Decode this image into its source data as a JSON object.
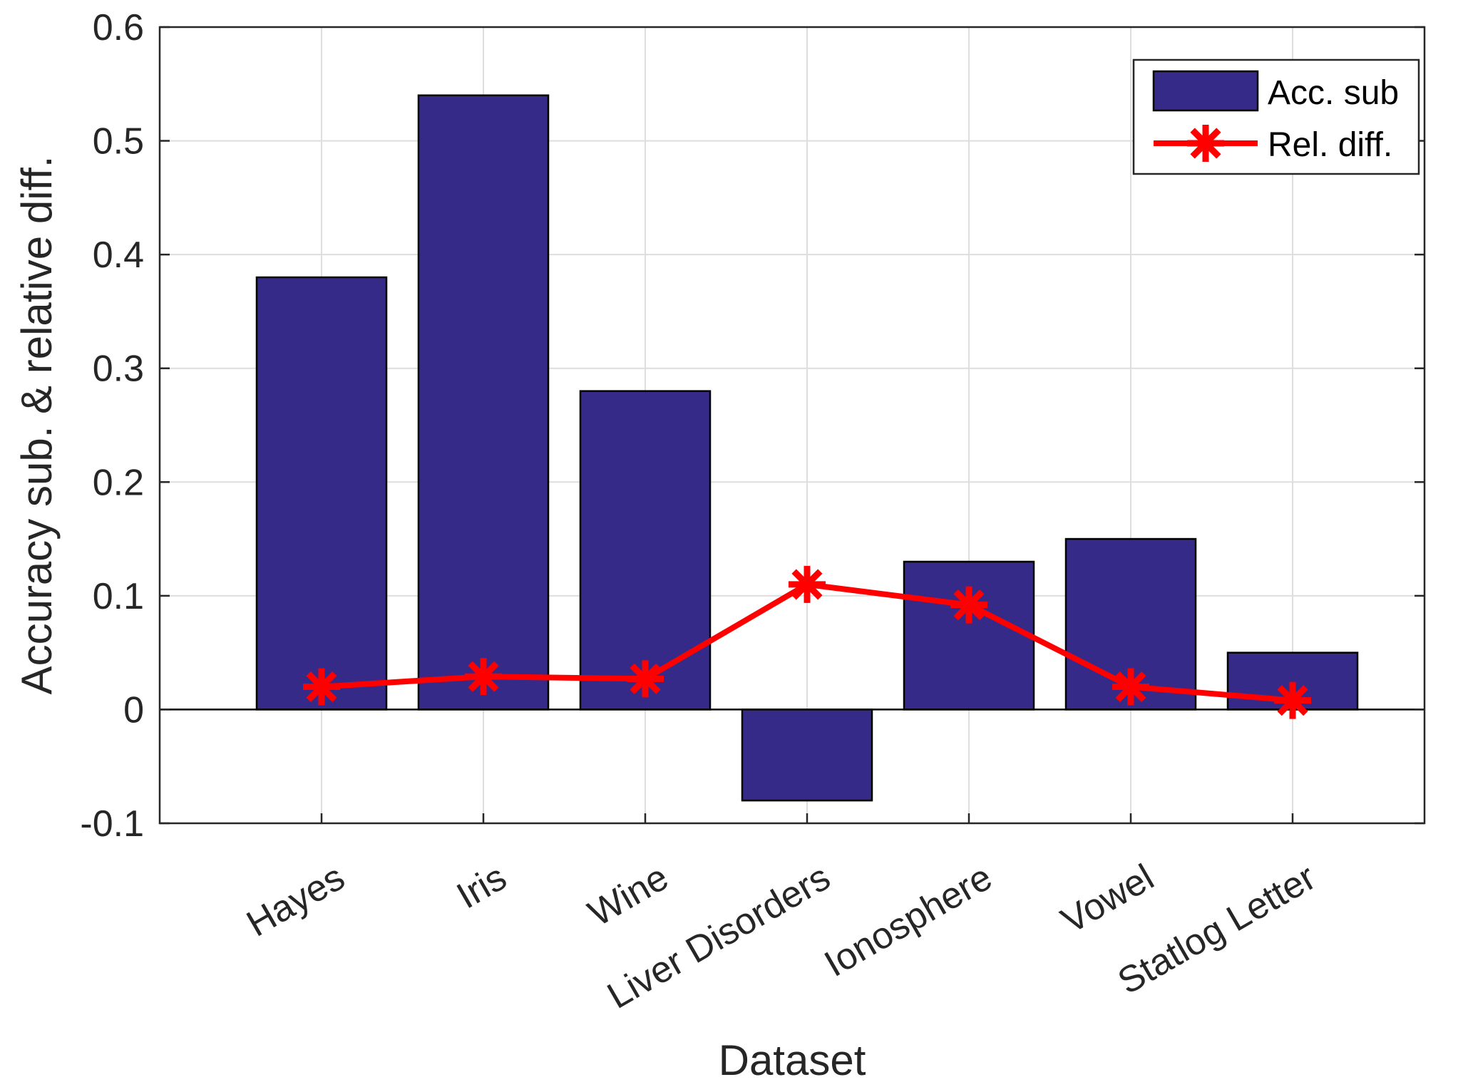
{
  "chart_data": {
    "type": "bar",
    "title": "",
    "xlabel": "Dataset",
    "ylabel": "Accuracy sub. & relative diff.",
    "categories": [
      "Hayes",
      "Iris",
      "Wine",
      "Liver Disorders",
      "Ionosphere",
      "Vowel",
      "Statlog Letter"
    ],
    "series": [
      {
        "name": "Acc. sub",
        "kind": "bar",
        "values": [
          0.38,
          0.54,
          0.28,
          -0.08,
          0.13,
          0.15,
          0.05
        ]
      },
      {
        "name": "Rel. diff.",
        "kind": "line",
        "marker": "asterisk",
        "values": [
          0.02,
          0.029,
          0.027,
          0.11,
          0.092,
          0.02,
          0.008
        ]
      }
    ],
    "ylim": [
      -0.1,
      0.6
    ],
    "yticks": [
      "-0.1",
      "0",
      "0.1",
      "0.2",
      "0.3",
      "0.4",
      "0.5",
      "0.6"
    ],
    "grid": true,
    "legend_position": "top-right",
    "colors": {
      "bar": "#352a87",
      "line": "#ff0000"
    }
  }
}
